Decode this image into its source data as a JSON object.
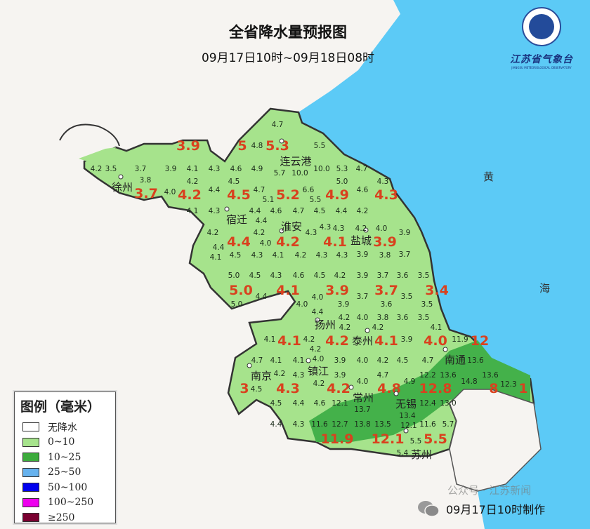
{
  "title": "全省降水量预报图",
  "subtitle": "09月17日10时~09月18日08时",
  "logo": {
    "name": "江苏省气象台",
    "subtitle": "JIANGSU METEOROLOGICAL OBSERVATORY"
  },
  "footer": {
    "made_at": "09月17日10时制作",
    "watermark": "公众号 · 江苏新闻",
    "wechat_icon": "wechat-icon"
  },
  "colors": {
    "sea": "#5ccaf6",
    "land_outside": "#f6f4f1",
    "level_0_10": "#a6e38c",
    "level_10_25": "#44b14a",
    "value_red": "#d9411e"
  },
  "legend": {
    "title": "图例（毫米）",
    "items": [
      {
        "label": "无降水",
        "color": "#ffffff"
      },
      {
        "label": "0~10",
        "color": "#a6e38c"
      },
      {
        "label": "10~25",
        "color": "#3cab3c"
      },
      {
        "label": "25~50",
        "color": "#66b2ee"
      },
      {
        "label": "50~100",
        "color": "#0000ee"
      },
      {
        "label": "100~250",
        "color": "#ee00ee"
      },
      {
        "label": "≥250",
        "color": "#7a0030"
      }
    ]
  },
  "sea_labels": [
    "黄",
    "海"
  ],
  "cities": [
    "徐州",
    "连云港",
    "宿迁",
    "淮安",
    "盐城",
    "扬州",
    "泰州",
    "南通",
    "南京",
    "镇江",
    "常州",
    "无锡",
    "苏州"
  ],
  "city_forecasts": [
    "3.9",
    "5",
    "5.3",
    "3.7",
    "4.2",
    "4.5",
    "5.2",
    "4.9",
    "4.3",
    "4.4",
    "4.2",
    "4.1",
    "3.9",
    "5.0",
    "4.1",
    "3.9",
    "3.7",
    "3.4",
    "4.1",
    "4.2",
    "4.1",
    "4.0",
    "12",
    "3",
    "4.3",
    "4.2",
    "4.8",
    "12.8",
    "8",
    "1",
    "11.9",
    "12.1",
    "5.5"
  ],
  "grid_values": [
    "4.7",
    "4.8",
    "5.5",
    "4.2",
    "3.5",
    "3.7",
    "3.9",
    "4.1",
    "4.3",
    "4.6",
    "4.9",
    "5.7",
    "10.0",
    "10.0",
    "5.3",
    "4.7",
    "3.8",
    "4.0",
    "4.2",
    "4.4",
    "4.5",
    "4.7",
    "5.1",
    "6.6",
    "5.5",
    "5.0",
    "4.6",
    "4.3",
    "4.1",
    "4.3",
    "4.4",
    "4.4",
    "4.6",
    "4.7",
    "4.5",
    "4.4",
    "4.2",
    "4.2",
    "4.4",
    "4.2",
    "4.0",
    "4.3",
    "4.3",
    "4.3",
    "4.2",
    "4.0",
    "3.9",
    "4.1",
    "4.5",
    "4.3",
    "4.1",
    "4.2",
    "4.3",
    "4.3",
    "3.9",
    "3.8",
    "3.7",
    "5.0",
    "4.5",
    "4.3",
    "4.6",
    "4.5",
    "4.2",
    "3.9",
    "3.7",
    "3.6",
    "3.5",
    "5.0",
    "4.4",
    "4.0",
    "4.0",
    "3.9",
    "3.7",
    "3.6",
    "3.5",
    "3.5",
    "4.4",
    "4.2",
    "4.0",
    "3.8",
    "3.6",
    "3.5",
    "4.1",
    "4.2",
    "4.2",
    "4.2",
    "4.2",
    "3.9",
    "4.1",
    "11.9",
    "4.7",
    "4.1",
    "4.1",
    "4.0",
    "3.9",
    "4.0",
    "4.2",
    "4.5",
    "4.7",
    "13.6",
    "4.5",
    "4.2",
    "4.3",
    "4.2",
    "3.9",
    "4.0",
    "4.7",
    "4.9",
    "12.2",
    "13.6",
    "14.8",
    "13.6",
    "12.3",
    "4.5",
    "4.4",
    "4.6",
    "12.1",
    "13.7",
    "13.4",
    "12.4",
    "13.0",
    "4.4",
    "4.3",
    "11.6",
    "12.7",
    "13.8",
    "13.5",
    "12.1",
    "11.6",
    "5.7",
    "5.4",
    "5.5"
  ]
}
